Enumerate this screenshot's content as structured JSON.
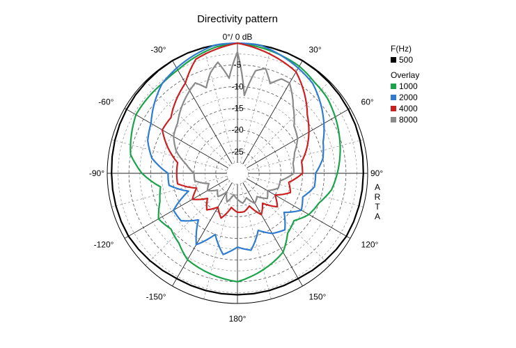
{
  "chart_data": {
    "type": "polar-line",
    "title": "Directivity pattern",
    "units": "dB",
    "radial_range": [
      -30,
      0
    ],
    "radial_ticks": [
      {
        "value": -5,
        "label": "-5"
      },
      {
        "value": -10,
        "label": "-10"
      },
      {
        "value": -15,
        "label": "-15"
      },
      {
        "value": -20,
        "label": "-20"
      },
      {
        "value": -25,
        "label": "-25"
      }
    ],
    "top_label": "0°/ 0 dB",
    "angle_labels": [
      {
        "angle": -30,
        "label": "-30°"
      },
      {
        "angle": 30,
        "label": "30°"
      },
      {
        "angle": -60,
        "label": "-60°"
      },
      {
        "angle": 60,
        "label": "60°"
      },
      {
        "angle": -90,
        "label": "-90°"
      },
      {
        "angle": 90,
        "label": "90°"
      },
      {
        "angle": -120,
        "label": "-120°"
      },
      {
        "angle": 120,
        "label": "120°"
      },
      {
        "angle": -150,
        "label": "-150°"
      },
      {
        "angle": 150,
        "label": "150°"
      },
      {
        "angle": 180,
        "label": "180°"
      }
    ],
    "grid": true,
    "legend_position": "right",
    "legend_header": "F(Hz)",
    "overlay_header": "Overlay",
    "series": [
      {
        "name": "500",
        "color": "#000000",
        "angles": [
          -180,
          -150,
          -120,
          -90,
          -60,
          -30,
          0,
          30,
          60,
          90,
          120,
          150
        ],
        "values": [
          -2,
          -2,
          -1,
          -1,
          -0.5,
          0,
          0,
          0,
          -0.5,
          -1,
          -1,
          -2
        ]
      },
      {
        "name": "1000",
        "color": "#1aa34a",
        "angles": [
          -180,
          -165,
          -150,
          -140,
          -130,
          -120,
          -110,
          -100,
          -90,
          -80,
          -70,
          -60,
          -50,
          -40,
          -30,
          -20,
          -10,
          0,
          10,
          20,
          30,
          40,
          50,
          60,
          70,
          80,
          90,
          100,
          110,
          120,
          130,
          140,
          150,
          165
        ],
        "values": [
          -5,
          -6,
          -7,
          -9,
          -10,
          -9,
          -11,
          -12,
          -8,
          -5,
          -4,
          -3,
          -3,
          -3,
          -2.5,
          -1.5,
          -0.5,
          0,
          -0.5,
          -1,
          -1.5,
          -2.5,
          -3,
          -4,
          -5,
          -6,
          -7,
          -8,
          -10,
          -11,
          -13,
          -12,
          -9,
          -7
        ]
      },
      {
        "name": "2000",
        "color": "#2e7bcf",
        "angles": [
          -180,
          -170,
          -160,
          -150,
          -140,
          -130,
          -120,
          -110,
          -100,
          -90,
          -80,
          -70,
          -60,
          -50,
          -40,
          -30,
          -20,
          -10,
          0,
          10,
          20,
          30,
          40,
          50,
          60,
          70,
          80,
          90,
          100,
          110,
          120,
          130,
          140,
          150,
          160,
          170
        ],
        "values": [
          -13,
          -11,
          -15,
          -11,
          -16,
          -13,
          -13,
          -18,
          -14,
          -14,
          -10,
          -8,
          -7,
          -5,
          -3,
          -2,
          -1,
          0,
          0,
          0,
          -1,
          -2,
          -3,
          -5,
          -7,
          -9,
          -10,
          -12,
          -12,
          -14,
          -13,
          -16,
          -13,
          -14,
          -16,
          -12
        ]
      },
      {
        "name": "4000",
        "color": "#cc1f1f",
        "angles": [
          -180,
          -170,
          -160,
          -150,
          -140,
          -130,
          -120,
          -110,
          -100,
          -90,
          -80,
          -70,
          -60,
          -50,
          -40,
          -30,
          -20,
          -10,
          0,
          10,
          20,
          30,
          40,
          50,
          60,
          70,
          80,
          90,
          100,
          110,
          120,
          130,
          140,
          150,
          160,
          170
        ],
        "values": [
          -21,
          -22,
          -19,
          -21,
          -19,
          -21,
          -18,
          -20,
          -16,
          -16,
          -16,
          -13,
          -10,
          -10,
          -8,
          -6,
          -2,
          -1,
          0,
          -1,
          -2,
          -3,
          -6,
          -9,
          -11,
          -13,
          -15,
          -15,
          -18,
          -17,
          -20,
          -18,
          -21,
          -19,
          -22,
          -21
        ]
      },
      {
        "name": "8000",
        "color": "#8a8a8a",
        "angles": [
          -180,
          -170,
          -160,
          -150,
          -140,
          -130,
          -120,
          -110,
          -100,
          -90,
          -80,
          -70,
          -60,
          -50,
          -40,
          -30,
          -25,
          -20,
          -15,
          -10,
          -5,
          0,
          5,
          10,
          15,
          20,
          25,
          30,
          40,
          50,
          60,
          70,
          80,
          90,
          100,
          110,
          120,
          130,
          140,
          150,
          160,
          170
        ],
        "values": [
          -24,
          -25,
          -23,
          -25,
          -23,
          -24,
          -22,
          -23,
          -20,
          -20,
          -18,
          -15,
          -13,
          -12,
          -10,
          -8,
          -7,
          -9,
          -6,
          -4,
          -8,
          -2,
          -12,
          -6,
          -5,
          -8,
          -6,
          -6,
          -10,
          -13,
          -14,
          -16,
          -17,
          -17,
          -20,
          -20,
          -22,
          -21,
          -23,
          -22,
          -24,
          -23
        ]
      }
    ]
  },
  "brand_letters": [
    "A",
    "R",
    "T",
    "A"
  ]
}
